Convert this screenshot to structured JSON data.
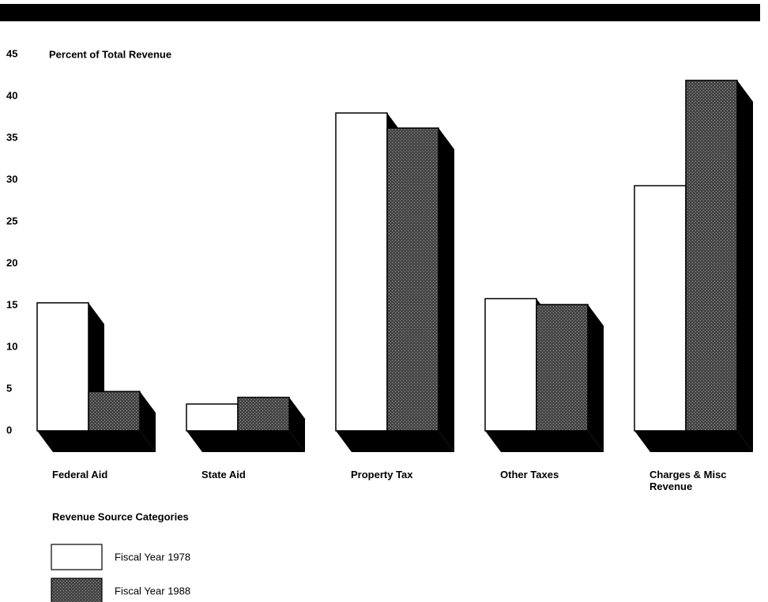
{
  "chart_data": {
    "type": "bar3d",
    "y_label": "Percent of Total Revenue",
    "x_label": "Revenue Source Categories",
    "categories": [
      "Federal Aid",
      "State Aid",
      "Property Tax",
      "Other Taxes",
      "Charges & Misc Revenue"
    ],
    "series": [
      {
        "name": "Fiscal Year 1978",
        "color": "#ffffff",
        "values": [
          15.3,
          3.2,
          38,
          15.8,
          29.3
        ]
      },
      {
        "name": "Fiscal Year 1988",
        "color": "#333333",
        "values": [
          4.7,
          4,
          36.2,
          15.1,
          41.9
        ]
      }
    ],
    "ylim": [
      0,
      45
    ],
    "yticks": [
      0,
      5,
      10,
      15,
      20,
      25,
      30,
      35,
      40,
      45
    ]
  }
}
